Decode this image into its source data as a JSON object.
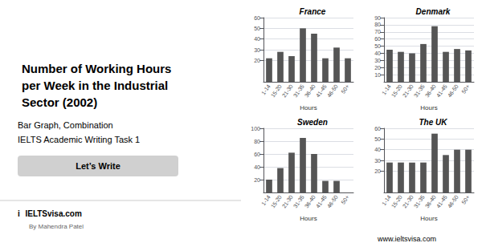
{
  "title": "Number of Working Hours\nper Week in the Industrial\nSector (2002)",
  "annotations": [
    "Bar Graph, Combination",
    "IELTS Academic Writing Task 1",
    "Let’s Write",
    "i",
    "IELTSvisa",
    ".com",
    "By Mahendra Patel",
    "www.ieltsvisa.com"
  ],
  "chart_data": [
    {
      "type": "bar",
      "title": "France",
      "xlabel": "Hours",
      "categories": [
        "1-14",
        "15-20",
        "21-30",
        "31-35",
        "36-40",
        "41-45",
        "46-50",
        "50+"
      ],
      "values": [
        22,
        28,
        24,
        50,
        45,
        22,
        32,
        22
      ],
      "color": "#555555",
      "ylim": [
        0,
        60
      ],
      "yticks": [
        20,
        30,
        40,
        50,
        60
      ],
      "grid": true
    },
    {
      "type": "bar",
      "title": "Denmark",
      "xlabel": "Hours",
      "categories": [
        "1-14",
        "15-20",
        "21-30",
        "31-35",
        "36-40",
        "41-45",
        "46-50",
        "50+"
      ],
      "values": [
        45,
        42,
        40,
        53,
        78,
        42,
        46,
        44
      ],
      "color": "#555555",
      "ylim": [
        0,
        90
      ],
      "yticks": [
        10,
        20,
        30,
        40,
        50,
        60,
        70,
        80,
        90
      ],
      "grid": true
    },
    {
      "type": "bar",
      "title": "Sweden",
      "xlabel": "Hours",
      "categories": [
        "1-14",
        "15-20",
        "21-30",
        "31-35",
        "36-40",
        "41-45",
        "46-50",
        "50+"
      ],
      "values": [
        20,
        38,
        62,
        85,
        60,
        18,
        18,
        0
      ],
      "color": "#555555",
      "ylim": [
        0,
        100
      ],
      "yticks": [
        20,
        40,
        60,
        80,
        100
      ],
      "grid": true
    },
    {
      "type": "bar",
      "title": "The UK",
      "xlabel": "Hours",
      "categories": [
        "1-14",
        "15-20",
        "21-30",
        "31-35",
        "36-40",
        "41-45",
        "46-50",
        "50+"
      ],
      "values": [
        28,
        28,
        28,
        28,
        55,
        35,
        40,
        40
      ],
      "color": "#555555",
      "ylim": [
        0,
        60
      ],
      "yticks": [
        20,
        30,
        40,
        50,
        60
      ],
      "grid": true
    }
  ]
}
